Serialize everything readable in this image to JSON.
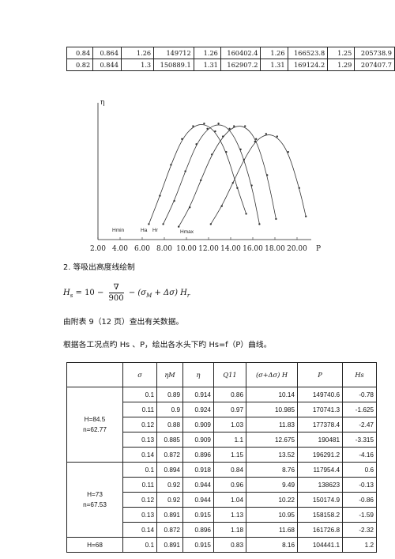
{
  "top_table": {
    "rows": [
      [
        "0.84",
        "0.864",
        "1.26",
        "149712",
        "1.26",
        "160402.4",
        "1.26",
        "166523.8",
        "1.25",
        "205738.9"
      ],
      [
        "0.82",
        "0.844",
        "1.3",
        "150889.1",
        "1.31",
        "162907.2",
        "1.31",
        "169124.2",
        "1.29",
        "207407.7"
      ]
    ]
  },
  "chart_data": {
    "type": "line",
    "y_label": "η",
    "x_label": "P",
    "y_ticks": [
      "0.930",
      "0.910",
      "0.890",
      "0.870",
      "0.850"
    ],
    "x_ticks": [
      "2.00",
      "4.00",
      "6.00",
      "8.00",
      "10.00",
      "12.00",
      "14.00",
      "16.00",
      "18.00",
      "20.00"
    ],
    "curve_labels": [
      "Hmin",
      "Ha",
      "Hr",
      "Hmax"
    ],
    "xlim": [
      2.0,
      21.0
    ],
    "ylim": [
      0.84,
      0.94
    ],
    "series": [
      {
        "name": "Hmin",
        "x": [
          6.6,
          7.6,
          8.6,
          9.6,
          10.6,
          11.6,
          12.6,
          13.6,
          14.6,
          15.4
        ],
        "y": [
          0.852,
          0.874,
          0.898,
          0.918,
          0.928,
          0.93,
          0.924,
          0.908,
          0.88,
          0.86
        ]
      },
      {
        "name": "Ha",
        "x": [
          7.9,
          8.9,
          9.9,
          10.9,
          11.9,
          12.9,
          13.9,
          14.9,
          15.9,
          16.6
        ],
        "y": [
          0.852,
          0.87,
          0.893,
          0.914,
          0.926,
          0.93,
          0.926,
          0.91,
          0.882,
          0.852
        ]
      },
      {
        "name": "Hr",
        "x": [
          9.3,
          10.3,
          11.3,
          12.3,
          13.3,
          14.3,
          15.3,
          16.3,
          17.3,
          18.1
        ],
        "y": [
          0.85,
          0.865,
          0.886,
          0.906,
          0.92,
          0.928,
          0.928,
          0.918,
          0.89,
          0.856
        ]
      },
      {
        "name": "Hmax",
        "x": [
          12.2,
          13.2,
          14.2,
          15.2,
          16.2,
          17.2,
          18.2,
          19.2,
          20.2,
          20.8
        ],
        "y": [
          0.852,
          0.866,
          0.884,
          0.902,
          0.916,
          0.922,
          0.92,
          0.908,
          0.88,
          0.858
        ]
      }
    ]
  },
  "section": {
    "heading": "2. 等吸出高度线绘制",
    "formula_lhs": "H",
    "formula_lhs_sub": "s",
    "formula_eq": "= 10 −",
    "formula_num": "∇",
    "formula_den": "900",
    "formula_rest": "− (σ",
    "formula_rest_sub": "M",
    "formula_tail": "+ Δσ) H",
    "formula_tail_sub": "r",
    "para1": "由附表 9（12 页）查出有关数据。",
    "para2": "根据各工况点旳 Hs 、P，绘出各水头下旳 Hs=f（P）曲线。"
  },
  "data_table": {
    "headers": [
      "",
      "σ",
      "ηM",
      "η",
      "Q11",
      "(σ+Δσ) H",
      "P",
      "Hs"
    ],
    "groups": [
      {
        "label_line1": "H=84.5",
        "label_line2": "n=62.77",
        "rows": [
          [
            "0.1",
            "0.89",
            "0.914",
            "0.86",
            "10.14",
            "149740.6",
            "-0.78"
          ],
          [
            "0.11",
            "0.9",
            "0.924",
            "0.97",
            "10.985",
            "170741.3",
            "-1.625"
          ],
          [
            "0.12",
            "0.88",
            "0.909",
            "1.03",
            "11.83",
            "177378.4",
            "-2.47"
          ],
          [
            "0.13",
            "0.885",
            "0.909",
            "1.1",
            "12.675",
            "190481",
            "-3.315"
          ],
          [
            "0.14",
            "0.872",
            "0.896",
            "1.15",
            "13.52",
            "196291.2",
            "-4.16"
          ]
        ]
      },
      {
        "label_line1": "H=73",
        "label_line2": "n=67.53",
        "rows": [
          [
            "0.1",
            "0.894",
            "0.918",
            "0.84",
            "8.76",
            "117954.4",
            "0.6"
          ],
          [
            "0.11",
            "0.92",
            "0.944",
            "0.96",
            "9.49",
            "138623",
            "-0.13"
          ],
          [
            "0.12",
            "0.92",
            "0.944",
            "1.04",
            "10.22",
            "150174.9",
            "-0.86"
          ],
          [
            "0.13",
            "0.891",
            "0.915",
            "1.13",
            "10.95",
            "158158.2",
            "-1.59"
          ],
          [
            "0.14",
            "0.872",
            "0.896",
            "1.18",
            "11.68",
            "161726.8",
            "-2.32"
          ]
        ]
      },
      {
        "label_line1": "H=68",
        "label_line2": "",
        "rows": [
          [
            "0.1",
            "0.891",
            "0.915",
            "0.83",
            "8.16",
            "104441.1",
            "1.2"
          ]
        ]
      }
    ]
  }
}
